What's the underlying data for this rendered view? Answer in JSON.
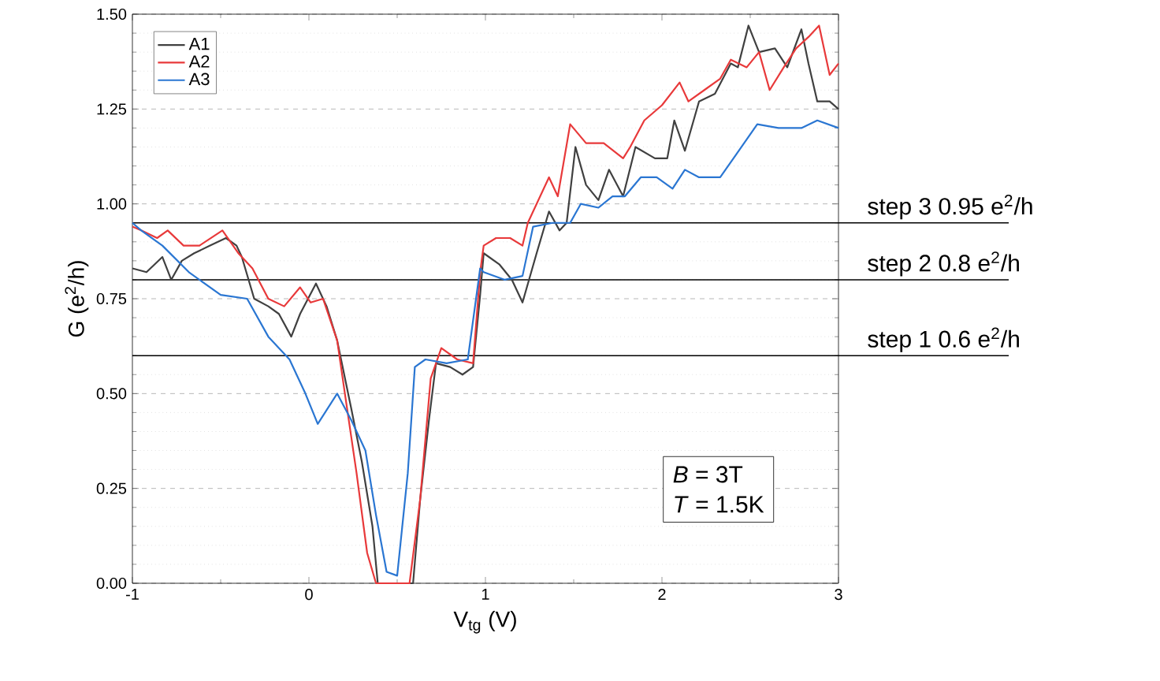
{
  "chart_data": {
    "type": "line",
    "xlabel": "V$_{tg}$ (V)",
    "ylabel": "G (e$^{2}$/h)",
    "xlim": [
      -1,
      3
    ],
    "ylim": [
      0,
      1.5
    ],
    "xticks": [
      -1,
      {
        "value": -0.5,
        "label": null
      },
      0,
      {
        "value": 0.5,
        "label": null
      },
      1,
      {
        "value": 1.5,
        "label": null
      },
      2,
      {
        "value": 2.5,
        "label": null
      },
      3
    ],
    "yticks": [
      {
        "value": 0,
        "label": "0.00"
      },
      {
        "value": 0.25,
        "label": "0.25"
      },
      {
        "value": 0.5,
        "label": "0.50"
      },
      {
        "value": 0.75,
        "label": "0.75"
      },
      {
        "value": 1,
        "label": "1.00"
      },
      {
        "value": 1.25,
        "label": "1.25"
      },
      {
        "value": 1.5,
        "label": "1.50"
      },
      {
        "value": 0.05,
        "label": null
      },
      {
        "value": 0.1,
        "label": null
      },
      {
        "value": 0.15,
        "label": null
      },
      {
        "value": 0.2,
        "label": null
      },
      {
        "value": 0.3,
        "label": null
      },
      {
        "value": 0.35,
        "label": null
      },
      {
        "value": 0.4,
        "label": null
      },
      {
        "value": 0.45,
        "label": null
      },
      {
        "value": 0.55,
        "label": null
      },
      {
        "value": 0.6,
        "label": null
      },
      {
        "value": 0.65,
        "label": null
      },
      {
        "value": 0.7,
        "label": null
      },
      {
        "value": 0.8,
        "label": null
      },
      {
        "value": 0.85,
        "label": null
      },
      {
        "value": 0.9,
        "label": null
      },
      {
        "value": 0.95,
        "label": null
      },
      {
        "value": 1.05,
        "label": null
      },
      {
        "value": 1.1,
        "label": null
      },
      {
        "value": 1.15,
        "label": null
      },
      {
        "value": 1.2,
        "label": null
      },
      {
        "value": 1.3,
        "label": null
      },
      {
        "value": 1.35,
        "label": null
      },
      {
        "value": 1.4,
        "label": null
      },
      {
        "value": 1.45,
        "label": null
      }
    ],
    "grid": "y",
    "legend": "top left",
    "series": [
      {
        "name": "A1",
        "color": "#404040",
        "x": [
          -1.0,
          -0.92,
          -0.83,
          -0.78,
          -0.72,
          -0.65,
          -0.56,
          -0.47,
          -0.41,
          -0.38,
          -0.31,
          -0.23,
          -0.17,
          -0.1,
          -0.05,
          0.04,
          0.1,
          0.16,
          0.24,
          0.3,
          0.36,
          0.39,
          0.59,
          0.63,
          0.68,
          0.72,
          0.8,
          0.87,
          0.93,
          0.97,
          0.99,
          1.08,
          1.15,
          1.21,
          1.29,
          1.36,
          1.42,
          1.46,
          1.51,
          1.57,
          1.64,
          1.7,
          1.78,
          1.85,
          1.96,
          2.03,
          2.07,
          2.13,
          2.21,
          2.3,
          2.39,
          2.43,
          2.49,
          2.55,
          2.64,
          2.71,
          2.79,
          2.83,
          2.88,
          2.95,
          3.0
        ],
        "values": [
          0.83,
          0.82,
          0.86,
          0.8,
          0.85,
          0.87,
          0.89,
          0.91,
          0.89,
          0.86,
          0.75,
          0.73,
          0.71,
          0.65,
          0.71,
          0.79,
          0.73,
          0.64,
          0.46,
          0.32,
          0.15,
          0.0,
          0.0,
          0.22,
          0.43,
          0.58,
          0.57,
          0.55,
          0.57,
          0.76,
          0.87,
          0.84,
          0.8,
          0.74,
          0.87,
          0.98,
          0.93,
          0.95,
          1.15,
          1.05,
          1.01,
          1.09,
          1.02,
          1.15,
          1.12,
          1.12,
          1.22,
          1.14,
          1.27,
          1.29,
          1.37,
          1.36,
          1.47,
          1.4,
          1.41,
          1.36,
          1.46,
          1.37,
          1.27,
          1.27,
          1.25
        ]
      },
      {
        "name": "A2",
        "color": "#e8393a",
        "x": [
          -1.0,
          -0.95,
          -0.86,
          -0.8,
          -0.71,
          -0.62,
          -0.49,
          -0.4,
          -0.32,
          -0.23,
          -0.14,
          -0.05,
          0.01,
          0.08,
          0.16,
          0.21,
          0.27,
          0.33,
          0.38,
          0.57,
          0.63,
          0.69,
          0.75,
          0.84,
          0.93,
          0.97,
          0.99,
          1.06,
          1.14,
          1.21,
          1.24,
          1.3,
          1.36,
          1.41,
          1.48,
          1.57,
          1.67,
          1.78,
          1.82,
          1.9,
          2.0,
          2.1,
          2.15,
          2.24,
          2.33,
          2.39,
          2.48,
          2.55,
          2.61,
          2.69,
          2.76,
          2.83,
          2.89,
          2.95,
          3.0
        ],
        "values": [
          0.94,
          0.93,
          0.91,
          0.93,
          0.89,
          0.89,
          0.93,
          0.87,
          0.83,
          0.75,
          0.73,
          0.78,
          0.74,
          0.75,
          0.64,
          0.48,
          0.29,
          0.08,
          0.0,
          0.0,
          0.22,
          0.54,
          0.62,
          0.59,
          0.58,
          0.82,
          0.89,
          0.91,
          0.91,
          0.89,
          0.95,
          1.01,
          1.07,
          1.02,
          1.21,
          1.16,
          1.16,
          1.12,
          1.15,
          1.22,
          1.26,
          1.32,
          1.27,
          1.3,
          1.33,
          1.38,
          1.36,
          1.4,
          1.3,
          1.36,
          1.41,
          1.44,
          1.47,
          1.34,
          1.37
        ]
      },
      {
        "name": "A3",
        "color": "#2a76d2",
        "x": [
          -1.0,
          -0.95,
          -0.83,
          -0.68,
          -0.5,
          -0.35,
          -0.23,
          -0.11,
          -0.02,
          0.05,
          0.16,
          0.24,
          0.32,
          0.38,
          0.44,
          0.5,
          0.56,
          0.6,
          0.66,
          0.78,
          0.9,
          0.97,
          0.99,
          1.11,
          1.21,
          1.27,
          1.38,
          1.48,
          1.54,
          1.64,
          1.72,
          1.79,
          1.88,
          1.97,
          2.06,
          2.13,
          2.21,
          2.33,
          2.42,
          2.54,
          2.66,
          2.79,
          2.88,
          3.0
        ],
        "values": [
          0.95,
          0.93,
          0.89,
          0.82,
          0.76,
          0.75,
          0.65,
          0.59,
          0.5,
          0.42,
          0.5,
          0.43,
          0.35,
          0.18,
          0.03,
          0.02,
          0.29,
          0.57,
          0.59,
          0.58,
          0.59,
          0.83,
          0.82,
          0.8,
          0.81,
          0.94,
          0.95,
          0.95,
          1.0,
          0.99,
          1.02,
          1.02,
          1.07,
          1.07,
          1.04,
          1.09,
          1.07,
          1.07,
          1.13,
          1.21,
          1.2,
          1.2,
          1.22,
          1.2
        ]
      }
    ],
    "ref_lines": [
      {
        "axis": "y",
        "value": 0.95,
        "label": "step 3   0.95 e$^{2}$/h",
        "color": "#000000"
      },
      {
        "axis": "y",
        "value": 0.8,
        "label": "step 2   0.8 e$^{2}$/h",
        "color": "#000000"
      },
      {
        "axis": "y",
        "value": 0.6,
        "label": "step 1   0.6 e$^{2}$/h",
        "color": "#000000"
      }
    ],
    "annotations": [
      "*B* = 3T",
      "*T* = 1.5K"
    ]
  }
}
